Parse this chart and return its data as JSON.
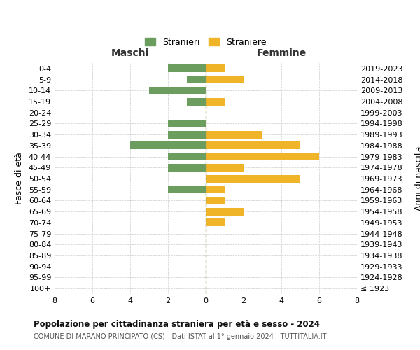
{
  "age_groups": [
    "100+",
    "95-99",
    "90-94",
    "85-89",
    "80-84",
    "75-79",
    "70-74",
    "65-69",
    "60-64",
    "55-59",
    "50-54",
    "45-49",
    "40-44",
    "35-39",
    "30-34",
    "25-29",
    "20-24",
    "15-19",
    "10-14",
    "5-9",
    "0-4"
  ],
  "birth_years": [
    "≤ 1923",
    "1924-1928",
    "1929-1933",
    "1934-1938",
    "1939-1943",
    "1944-1948",
    "1949-1953",
    "1954-1958",
    "1959-1963",
    "1964-1968",
    "1969-1973",
    "1974-1978",
    "1979-1983",
    "1984-1988",
    "1989-1993",
    "1994-1998",
    "1999-2003",
    "2004-2008",
    "2009-2013",
    "2014-2018",
    "2019-2023"
  ],
  "males": [
    0,
    0,
    0,
    0,
    0,
    0,
    0,
    0,
    0,
    2,
    0,
    2,
    2,
    4,
    2,
    2,
    0,
    1,
    3,
    1,
    2
  ],
  "females": [
    0,
    0,
    0,
    0,
    0,
    0,
    1,
    2,
    1,
    1,
    5,
    2,
    6,
    5,
    3,
    0,
    0,
    1,
    0,
    2,
    1
  ],
  "male_color": "#6b9e5e",
  "female_color": "#f0b429",
  "title": "Popolazione per cittadinanza straniera per età e sesso - 2024",
  "subtitle": "COMUNE DI MARANO PRINCIPATO (CS) - Dati ISTAT al 1° gennaio 2024 - TUTTITALIA.IT",
  "legend_male": "Stranieri",
  "legend_female": "Straniere",
  "maschi_label": "Maschi",
  "femmine_label": "Femmine",
  "fasce_eta_label": "Fasce di età",
  "anni_nascita_label": "Anni di nascita",
  "xlim": 8,
  "background_color": "#ffffff",
  "grid_color": "#cccccc"
}
